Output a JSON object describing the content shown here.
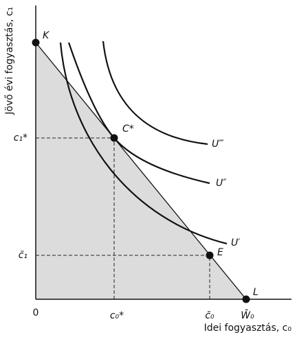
{
  "axes": {
    "y_label": "Jövő évi fogyasztás, c₁",
    "x_label": "Idei fogyasztás, c₀",
    "origin": "0"
  },
  "x_ticks": [
    "c₀*",
    "c̄₀",
    "W̄₀"
  ],
  "y_ticks": [
    "c₁*",
    "c̄₁"
  ],
  "points": [
    "K",
    "C*",
    "E",
    "L"
  ],
  "curves": [
    "U′",
    "U″",
    "U‴"
  ]
}
